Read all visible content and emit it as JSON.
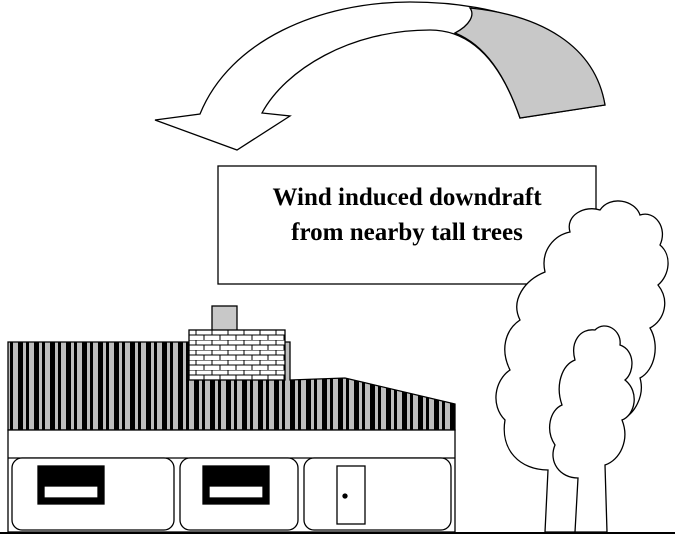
{
  "label": {
    "lines": [
      "Wind induced downdraft",
      "from nearby tall trees"
    ]
  }
}
